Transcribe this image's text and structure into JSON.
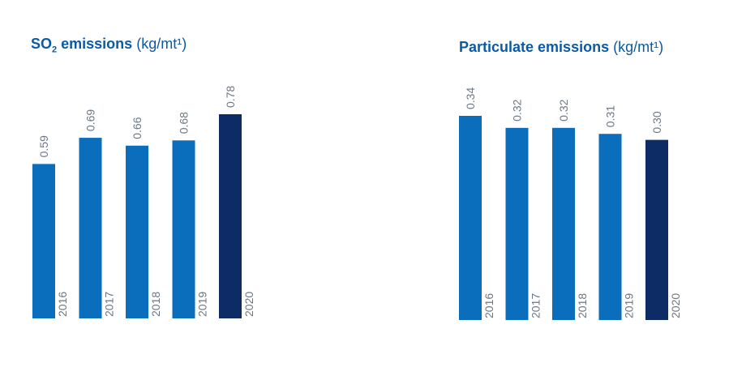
{
  "colors": {
    "bar": "#0a6ebd",
    "bar_highlight": "#0d2b64",
    "value_label": "#6b7785",
    "year_label": "#6b7785",
    "title": "#0a5aa8"
  },
  "chart_data": [
    {
      "type": "bar",
      "title_main": "SO",
      "title_sub": "2",
      "title_rest": " emissions",
      "title_unit": "(kg/mt¹)",
      "categories": [
        "2016",
        "2017",
        "2018",
        "2019",
        "2020"
      ],
      "values": [
        0.59,
        0.69,
        0.66,
        0.68,
        0.78
      ],
      "value_labels": [
        "0.59",
        "0.69",
        "0.66",
        "0.68",
        "0.78"
      ],
      "highlight_index": 4,
      "ylim": [
        0,
        0.9
      ]
    },
    {
      "type": "bar",
      "title_main": "Particulate emissions",
      "title_unit": "(kg/mt¹)",
      "categories": [
        "2016",
        "2017",
        "2018",
        "2019",
        "2020"
      ],
      "values": [
        0.34,
        0.32,
        0.32,
        0.31,
        0.3
      ],
      "value_labels": [
        "0.34",
        "0.32",
        "0.32",
        "0.31",
        "0.30"
      ],
      "highlight_index": 4,
      "ylim": [
        0,
        0.34
      ]
    }
  ]
}
